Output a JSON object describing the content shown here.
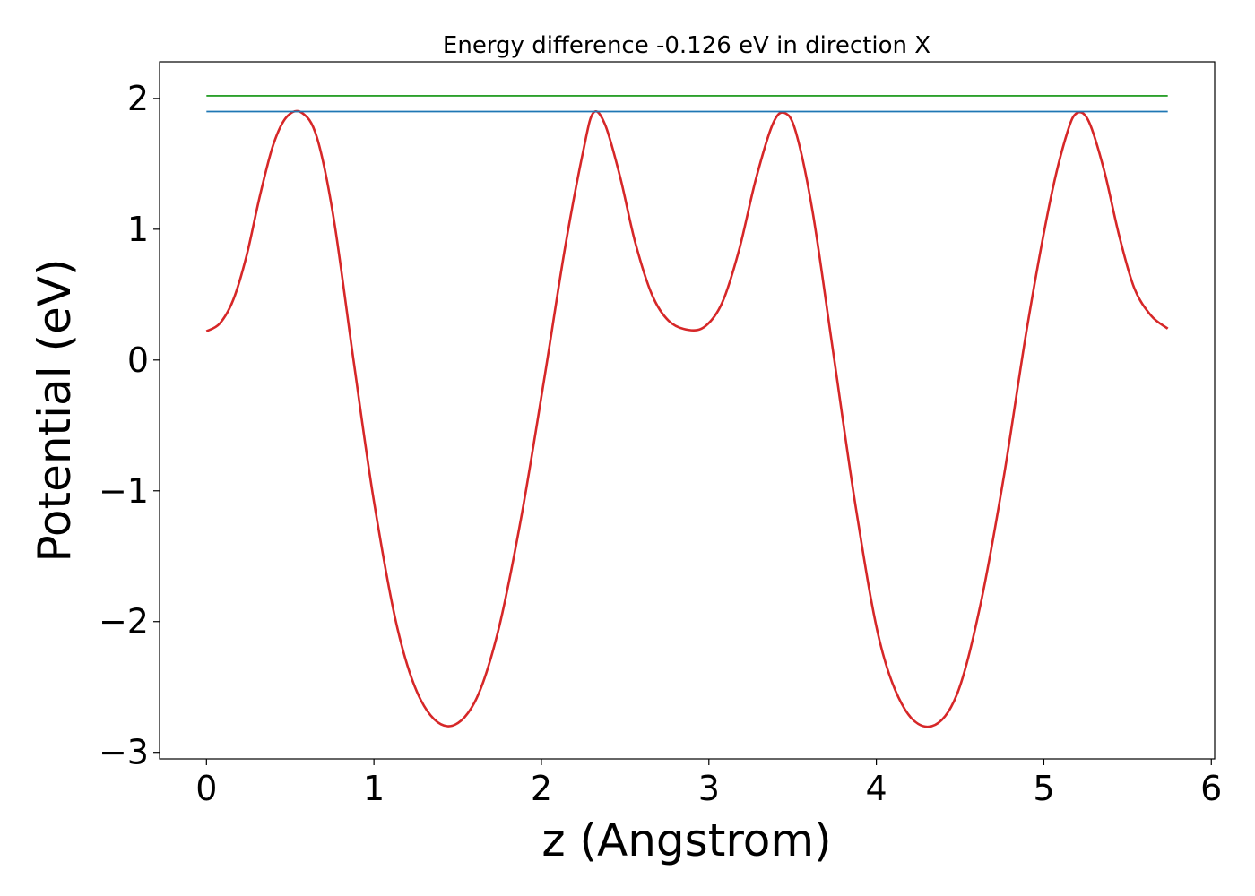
{
  "chart_data": {
    "type": "line",
    "title": "Energy difference -0.126 eV in direction X",
    "xlabel": "z (Angstrom)",
    "ylabel": "Potential (eV)",
    "xlim": [
      -0.28,
      6.02
    ],
    "ylim": [
      -3.05,
      2.28
    ],
    "xticks": [
      0,
      1,
      2,
      3,
      4,
      5,
      6
    ],
    "xtick_labels": [
      "0",
      "1",
      "2",
      "3",
      "4",
      "5",
      "6"
    ],
    "yticks": [
      2,
      1,
      0,
      -1,
      -2,
      -3
    ],
    "ytick_labels": [
      "2",
      "1",
      "0",
      "−1",
      "−2",
      "−3"
    ],
    "grid": false,
    "legend": "none",
    "series": [
      {
        "color": "#d62728",
        "style": "curve",
        "x": [
          0.0,
          0.08,
          0.16,
          0.24,
          0.32,
          0.4,
          0.48,
          0.57,
          0.66,
          0.76,
          0.88,
          1.0,
          1.14,
          1.28,
          1.44,
          1.6,
          1.74,
          1.88,
          2.02,
          2.14,
          2.25,
          2.31,
          2.38,
          2.47,
          2.56,
          2.66,
          2.76,
          2.88,
          2.98,
          3.08,
          3.18,
          3.28,
          3.38,
          3.45,
          3.52,
          3.62,
          3.74,
          3.88,
          4.02,
          4.17,
          4.33,
          4.48,
          4.62,
          4.76,
          4.9,
          5.04,
          5.14,
          5.2,
          5.27,
          5.36,
          5.45,
          5.54,
          5.64,
          5.74
        ],
        "y": [
          0.22,
          0.28,
          0.46,
          0.8,
          1.26,
          1.65,
          1.86,
          1.89,
          1.7,
          1.08,
          -0.02,
          -1.08,
          -2.05,
          -2.6,
          -2.8,
          -2.62,
          -2.08,
          -1.2,
          -0.12,
          0.85,
          1.6,
          1.89,
          1.8,
          1.4,
          0.9,
          0.5,
          0.3,
          0.23,
          0.26,
          0.44,
          0.84,
          1.38,
          1.8,
          1.89,
          1.74,
          1.13,
          0.08,
          -1.15,
          -2.15,
          -2.67,
          -2.8,
          -2.56,
          -1.88,
          -0.9,
          0.25,
          1.23,
          1.74,
          1.89,
          1.82,
          1.45,
          0.95,
          0.55,
          0.34,
          0.24
        ]
      },
      {
        "color": "#1f77b4",
        "style": "hline",
        "x": [
          0.0,
          5.74
        ],
        "y": [
          1.9,
          1.9
        ]
      },
      {
        "color": "#2ca02c",
        "style": "hline",
        "x": [
          0.0,
          5.74
        ],
        "y": [
          2.02,
          2.02
        ]
      }
    ]
  }
}
